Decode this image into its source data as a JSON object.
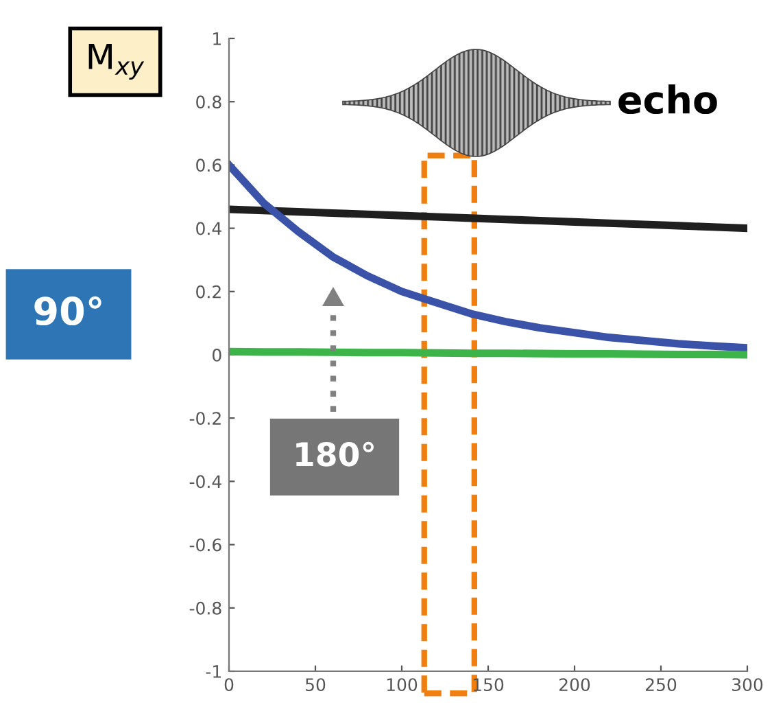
{
  "chart_data": {
    "type": "line",
    "x": [
      0,
      20,
      40,
      60,
      80,
      100,
      120,
      140,
      160,
      180,
      200,
      220,
      240,
      260,
      280,
      300
    ],
    "series": [
      {
        "color": "#1f1f1f",
        "values": [
          0.46,
          0.456,
          0.452,
          0.448,
          0.444,
          0.44,
          0.436,
          0.432,
          0.428,
          0.424,
          0.42,
          0.416,
          0.412,
          0.408,
          0.404,
          0.4
        ]
      },
      {
        "color": "#3a52a8",
        "values": [
          0.6,
          0.48,
          0.39,
          0.31,
          0.25,
          0.2,
          0.165,
          0.13,
          0.105,
          0.085,
          0.07,
          0.055,
          0.045,
          0.035,
          0.028,
          0.022
        ]
      },
      {
        "color": "#3cb44a",
        "values": [
          0.01,
          0.009,
          0.009,
          0.008,
          0.007,
          0.007,
          0.006,
          0.005,
          0.005,
          0.004,
          0.003,
          0.003,
          0.002,
          0.001,
          0.001,
          0.0
        ]
      }
    ],
    "xlim": [
      0,
      300
    ],
    "xticks": [
      0,
      50,
      100,
      150,
      200,
      250,
      300
    ],
    "ylim": [
      -1,
      1
    ],
    "yticks": [
      -1,
      -0.8,
      -0.6,
      -0.4,
      -0.2,
      0,
      0.2,
      0.4,
      0.6,
      0.8,
      1
    ],
    "annotations": [
      "M$_{xy}$",
      "90°",
      "180°",
      "echo"
    ],
    "grid": false,
    "legend": false,
    "marker": "none",
    "line_style": "solid"
  }
}
